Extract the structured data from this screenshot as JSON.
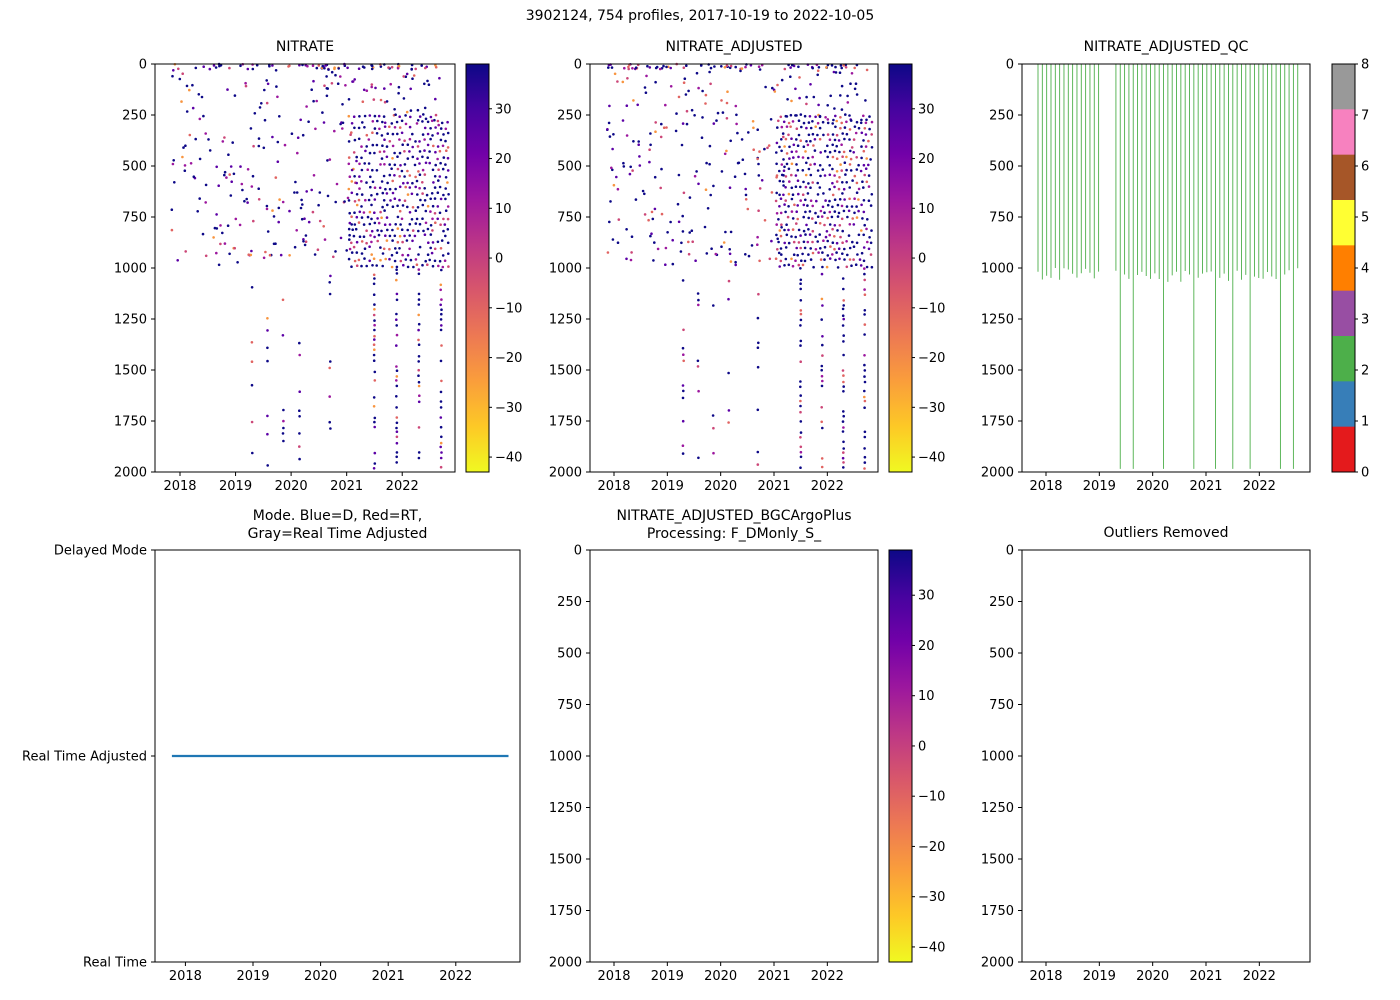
{
  "figure": {
    "title": "3902124, 754 profiles, 2017-10-19 to 2022-10-05"
  },
  "axis": {
    "xlim": [
      2017.55,
      2022.95
    ],
    "x_ticks": [
      2018,
      2019,
      2020,
      2021,
      2022
    ],
    "depth_ticks": [
      0,
      250,
      500,
      750,
      1000,
      1250,
      1500,
      1750,
      2000
    ],
    "depth_lim": [
      0,
      2000
    ]
  },
  "palette": {
    "plasma_stops": [
      "#0d0887",
      "#46039f",
      "#7201a8",
      "#9c179e",
      "#bd3786",
      "#d8576b",
      "#ed7953",
      "#fa9e3b",
      "#fdc926",
      "#f0f921"
    ],
    "scatter_colors": [
      "#0d0887",
      "#5c01a6",
      "#9c179e",
      "#cc4778",
      "#e16462",
      "#f89540"
    ],
    "scatter_weights": [
      0.5,
      0.16,
      0.12,
      0.1,
      0.07,
      0.05
    ],
    "qc_line_color": "#4daf4a",
    "mode_line_color": "#1f77b4"
  },
  "colorbar_nitrate": {
    "vmin": -43,
    "vmax": 39,
    "ticks": [
      30,
      20,
      10,
      0,
      -10,
      -20,
      -30,
      -40
    ]
  },
  "colorbar_qc": {
    "ticks": [
      8,
      7,
      6,
      5,
      4,
      3,
      2,
      1,
      0
    ],
    "colors_top_to_bottom": [
      "#999999",
      "#f781bf",
      "#a65628",
      "#ffff33",
      "#ff7f00",
      "#984ea3",
      "#4daf4a",
      "#377eb8",
      "#e41a1c"
    ]
  },
  "scatter_gen": {
    "surface": {
      "t0": 2017.85,
      "t1": 2022.78,
      "d0": 0,
      "d1": 25,
      "n": 70
    },
    "sparse": {
      "t0": 2017.85,
      "t1": 2021.2,
      "d0": 25,
      "d1": 990,
      "n": 215
    },
    "sparse_late": {
      "t0": 2021.2,
      "t1": 2022.78,
      "d0": 25,
      "d1": 300,
      "n": 40
    },
    "dense": {
      "t0": 2021.05,
      "t1": 2022.78,
      "d0": 255,
      "d1": 990,
      "cols": 19,
      "rows": 25,
      "keep": 0.82
    },
    "deep_sparse": {
      "times": [
        2019.3,
        2019.58,
        2019.86,
        2020.15,
        2020.7
      ],
      "d0": 1005,
      "d1": 1990,
      "step": 30,
      "keep": 0.22
    },
    "deep_dense": {
      "times": [
        2021.5,
        2021.9,
        2022.3,
        2022.7
      ],
      "d0": 1005,
      "d1": 1990,
      "step": 25,
      "keep": 0.6
    }
  },
  "qc_gen": {
    "t0": 2017.85,
    "t1": 2022.72,
    "count": 61,
    "gaps": [
      [
        2019.02,
        2019.3
      ]
    ],
    "main_depth": 1000,
    "stub_max": 70,
    "deep_times": [
      2019.37,
      2019.62,
      2020.2,
      2020.75,
      2021.15,
      2021.5,
      2021.85,
      2022.42,
      2022.66
    ],
    "deep_depth": 1985
  },
  "chart_data": [
    {
      "id": "nitrate",
      "type": "scatter",
      "title": "NITRATE",
      "seed": 7,
      "x_ticks": [
        2018,
        2019,
        2020,
        2021,
        2022
      ],
      "y_ticks": [
        0,
        250,
        500,
        750,
        1000,
        1250,
        1500,
        1750,
        2000
      ],
      "xlim": [
        2017.55,
        2022.95
      ],
      "ylim": [
        2000,
        0
      ],
      "colorbar": {
        "ref": "colorbar_nitrate"
      }
    },
    {
      "id": "nitrate_adjusted",
      "type": "scatter",
      "title": "NITRATE_ADJUSTED",
      "seed": 23,
      "x_ticks": [
        2018,
        2019,
        2020,
        2021,
        2022
      ],
      "y_ticks": [
        0,
        250,
        500,
        750,
        1000,
        1250,
        1500,
        1750,
        2000
      ],
      "xlim": [
        2017.55,
        2022.95
      ],
      "ylim": [
        2000,
        0
      ],
      "colorbar": {
        "ref": "colorbar_nitrate"
      }
    },
    {
      "id": "nitrate_adjusted_qc",
      "type": "qc",
      "title": "NITRATE_ADJUSTED_QC",
      "x_ticks": [
        2018,
        2019,
        2020,
        2021,
        2022
      ],
      "y_ticks": [
        0,
        250,
        500,
        750,
        1000,
        1250,
        1500,
        1750,
        2000
      ],
      "xlim": [
        2017.55,
        2022.95
      ],
      "ylim": [
        2000,
        0
      ],
      "colorbar": {
        "ref": "colorbar_qc"
      }
    },
    {
      "id": "mode",
      "type": "mode",
      "title_lines": [
        "Mode. Blue=D, Red=RT,",
        "Gray=Real Time Adjusted"
      ],
      "x_ticks": [
        2018,
        2019,
        2020,
        2021,
        2022
      ],
      "y_categories": [
        "Delayed Mode",
        "Real Time Adjusted",
        "Real Time"
      ],
      "line_at": "Real Time Adjusted",
      "line_span": [
        2017.8,
        2022.78
      ]
    },
    {
      "id": "bgc_processing",
      "type": "empty",
      "title_lines": [
        "NITRATE_ADJUSTED_BGCArgoPlus",
        "Processing: F_DMonly_S_"
      ],
      "x_ticks": [
        2018,
        2019,
        2020,
        2021,
        2022
      ],
      "y_ticks": [
        0,
        250,
        500,
        750,
        1000,
        1250,
        1500,
        1750,
        2000
      ],
      "xlim": [
        2017.55,
        2022.95
      ],
      "ylim": [
        2000,
        0
      ],
      "colorbar": {
        "ref": "colorbar_nitrate"
      }
    },
    {
      "id": "outliers_removed",
      "type": "empty",
      "title": "Outliers Removed",
      "x_ticks": [
        2018,
        2019,
        2020,
        2021,
        2022
      ],
      "y_ticks": [
        0,
        250,
        500,
        750,
        1000,
        1250,
        1500,
        1750,
        2000
      ],
      "xlim": [
        2017.55,
        2022.95
      ],
      "ylim": [
        2000,
        0
      ]
    }
  ]
}
